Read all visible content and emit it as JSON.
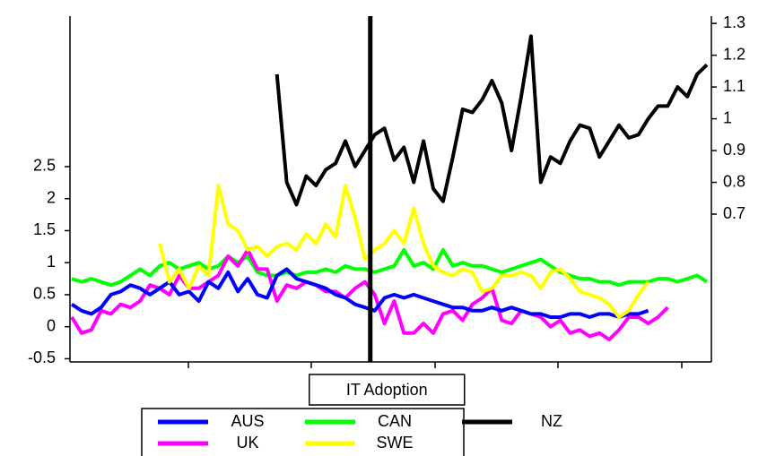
{
  "chart_data": {
    "type": "line",
    "series": [
      {
        "name": "AUS",
        "color": "#0000ff",
        "values": [
          0.35,
          0.25,
          0.2,
          0.3,
          0.5,
          0.55,
          0.65,
          0.6,
          0.5,
          0.6,
          0.7,
          0.5,
          0.55,
          0.4,
          0.7,
          0.6,
          0.85,
          0.55,
          0.75,
          0.5,
          0.45,
          0.8,
          0.9,
          0.75,
          0.7,
          0.65,
          0.6,
          0.5,
          0.45,
          0.35,
          0.3,
          0.25,
          0.45,
          0.5,
          0.45,
          0.5,
          0.45,
          0.4,
          0.35,
          0.3,
          0.3,
          0.25,
          0.25,
          0.3,
          0.25,
          0.3,
          0.25,
          0.2,
          0.2,
          0.15,
          0.15,
          0.2,
          0.2,
          0.15,
          0.2,
          0.2,
          0.15,
          0.2,
          0.2,
          0.25,
          null,
          null,
          null,
          null,
          null,
          null
        ]
      },
      {
        "name": "CAN",
        "color": "#00ff00",
        "values": [
          0.75,
          0.7,
          0.75,
          0.7,
          0.65,
          0.7,
          0.8,
          0.9,
          0.8,
          0.95,
          1.0,
          0.9,
          0.95,
          1.0,
          0.9,
          0.95,
          1.1,
          1.0,
          1.1,
          0.85,
          0.8,
          0.8,
          0.85,
          0.8,
          0.85,
          0.85,
          0.9,
          0.85,
          0.95,
          0.9,
          0.9,
          0.85,
          0.9,
          0.95,
          1.2,
          0.95,
          1.0,
          0.9,
          1.2,
          0.95,
          1.0,
          0.95,
          0.95,
          0.9,
          0.85,
          0.9,
          0.95,
          1.0,
          1.05,
          0.95,
          0.85,
          0.8,
          0.75,
          0.75,
          0.7,
          0.7,
          0.65,
          0.7,
          0.7,
          0.7,
          0.75,
          0.75,
          0.7,
          0.75,
          0.8,
          0.7
        ]
      },
      {
        "name": "NZ",
        "color": "#000000",
        "axis": "y2",
        "values": [
          null,
          null,
          null,
          null,
          null,
          null,
          null,
          null,
          null,
          null,
          null,
          null,
          null,
          null,
          null,
          null,
          null,
          null,
          null,
          null,
          null,
          1.14,
          0.8,
          0.73,
          0.82,
          0.79,
          0.84,
          0.86,
          0.93,
          0.85,
          0.9,
          0.95,
          0.97,
          0.87,
          0.91,
          0.8,
          0.93,
          0.78,
          0.74,
          0.88,
          1.03,
          1.02,
          1.06,
          1.12,
          1.05,
          0.9,
          1.07,
          1.26,
          0.8,
          0.88,
          0.86,
          0.93,
          0.98,
          0.97,
          0.88,
          0.93,
          0.98,
          0.94,
          0.95,
          1.0,
          1.04,
          1.04,
          1.1,
          1.07,
          1.14,
          1.17
        ]
      },
      {
        "name": "UK",
        "color": "#ff00ff",
        "values": [
          0.15,
          -0.1,
          -0.05,
          0.25,
          0.2,
          0.35,
          0.3,
          0.4,
          0.65,
          0.6,
          0.5,
          0.8,
          0.6,
          0.6,
          0.7,
          0.8,
          1.1,
          0.95,
          1.2,
          0.9,
          0.9,
          0.4,
          0.65,
          0.6,
          0.7,
          0.65,
          0.55,
          0.55,
          0.45,
          0.6,
          0.7,
          0.5,
          0.05,
          0.4,
          -0.1,
          -0.1,
          0.05,
          -0.1,
          0.2,
          0.25,
          0.1,
          0.35,
          0.45,
          0.6,
          0.1,
          0.05,
          0.25,
          0.2,
          0.15,
          0.0,
          0.1,
          -0.1,
          -0.05,
          -0.15,
          -0.1,
          -0.2,
          -0.05,
          0.15,
          0.15,
          0.05,
          0.15,
          0.3,
          null,
          null,
          null,
          null
        ]
      },
      {
        "name": "SWE",
        "color": "#ffff00",
        "values": [
          null,
          null,
          null,
          null,
          null,
          null,
          null,
          null,
          null,
          1.3,
          0.7,
          0.9,
          0.6,
          0.95,
          0.8,
          2.2,
          1.6,
          1.5,
          1.2,
          1.25,
          1.1,
          1.25,
          1.3,
          1.2,
          1.45,
          1.3,
          1.6,
          1.4,
          2.2,
          1.7,
          1.05,
          1.2,
          1.3,
          1.5,
          1.3,
          1.85,
          1.3,
          0.95,
          0.85,
          0.8,
          0.9,
          0.85,
          0.55,
          0.6,
          0.8,
          0.8,
          0.85,
          0.8,
          0.6,
          0.85,
          0.9,
          0.75,
          0.55,
          0.5,
          0.45,
          0.35,
          0.15,
          0.25,
          0.5,
          0.7,
          null,
          null,
          null,
          null,
          null,
          null
        ]
      }
    ],
    "ylim": [
      -0.55,
      4.85
    ],
    "yticks": [
      -0.5,
      0.0,
      0.5,
      1.0,
      1.5,
      2.0,
      2.5
    ],
    "y2lim": [
      0.235,
      1.323
    ],
    "y2ticks": [
      0.7,
      0.8,
      0.9,
      1.0,
      1.1,
      1.2,
      1.3
    ],
    "annotations": [
      {
        "text": "IT Adoption",
        "x": 30.55
      }
    ]
  }
}
